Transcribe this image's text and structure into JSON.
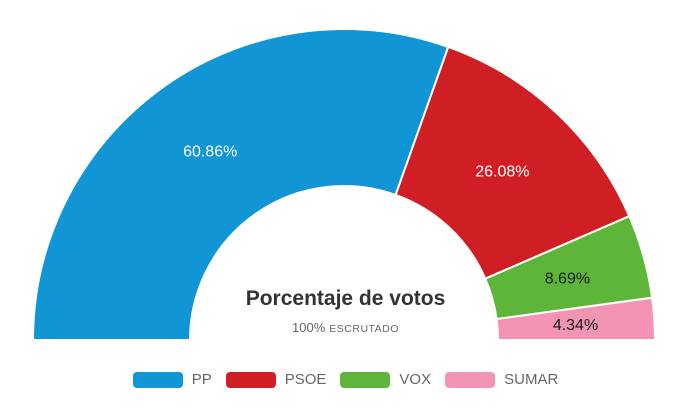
{
  "chart": {
    "title": "Porcentaje de votos",
    "subtitle_value": "100%",
    "subtitle_label": "ESCRUTADO"
  },
  "chart_data": {
    "type": "pie",
    "variant": "semi-donut",
    "title": "Porcentaje de votos",
    "subtitle": "100% ESCRUTADO",
    "unit": "%",
    "start_angle_deg": 180,
    "end_angle_deg": 0,
    "legend_position": "bottom",
    "points": [
      {
        "name": "PP",
        "value": 60.86,
        "label": "60.86%",
        "color": "#1195d4",
        "label_color": "#ffffff"
      },
      {
        "name": "PSOE",
        "value": 26.08,
        "label": "26.08%",
        "color": "#d01f24",
        "label_color": "#ffffff"
      },
      {
        "name": "VOX",
        "value": 8.69,
        "label": "8.69%",
        "color": "#5db53a",
        "label_color": "#1a1a1a"
      },
      {
        "name": "SUMAR",
        "value": 4.34,
        "label": "4.34%",
        "color": "#f394b5",
        "label_color": "#1a1a1a"
      }
    ]
  }
}
